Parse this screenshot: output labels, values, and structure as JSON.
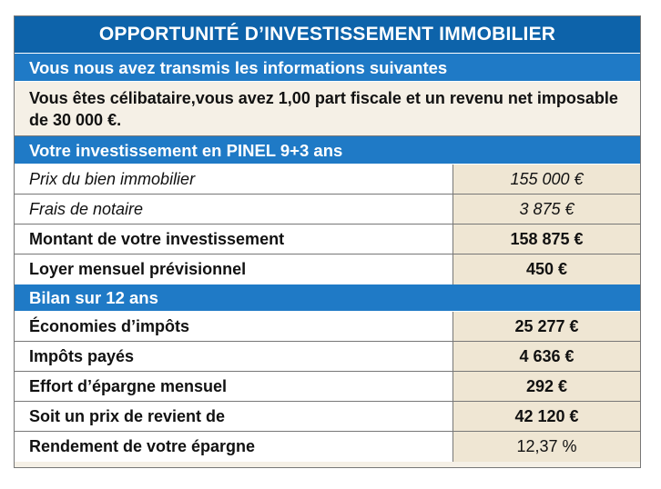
{
  "title": "OPPORTUNITÉ D’INVESTISSEMENT IMMOBILIER",
  "section1": {
    "heading": "Vous nous avez transmis les informations suivantes",
    "text": "Vous êtes célibataire,vous avez 1,00 part fiscale et un revenu net imposable de 30 000 €."
  },
  "section2": {
    "heading": "Votre investissement en PINEL 9+3 ans",
    "rows": [
      {
        "label": "Prix du bien immobilier",
        "value": "155 000 €"
      },
      {
        "label": "Frais de notaire",
        "value": "3 875 €"
      },
      {
        "label": "Montant de votre investissement",
        "value": "158 875 €"
      },
      {
        "label": "Loyer mensuel prévisionnel",
        "value": "450 €"
      }
    ]
  },
  "section3": {
    "heading": "Bilan sur 12 ans",
    "rows": [
      {
        "label": "Économies d’impôts",
        "value": "25 277 €"
      },
      {
        "label": "Impôts payés",
        "value": "4 636 €"
      },
      {
        "label": "Effort d’épargne mensuel",
        "value": "292 €"
      },
      {
        "label": "Soit un prix de revient de",
        "value": "42 120 €"
      },
      {
        "label": "Rendement de votre épargne",
        "value": "12,37 %"
      }
    ]
  }
}
